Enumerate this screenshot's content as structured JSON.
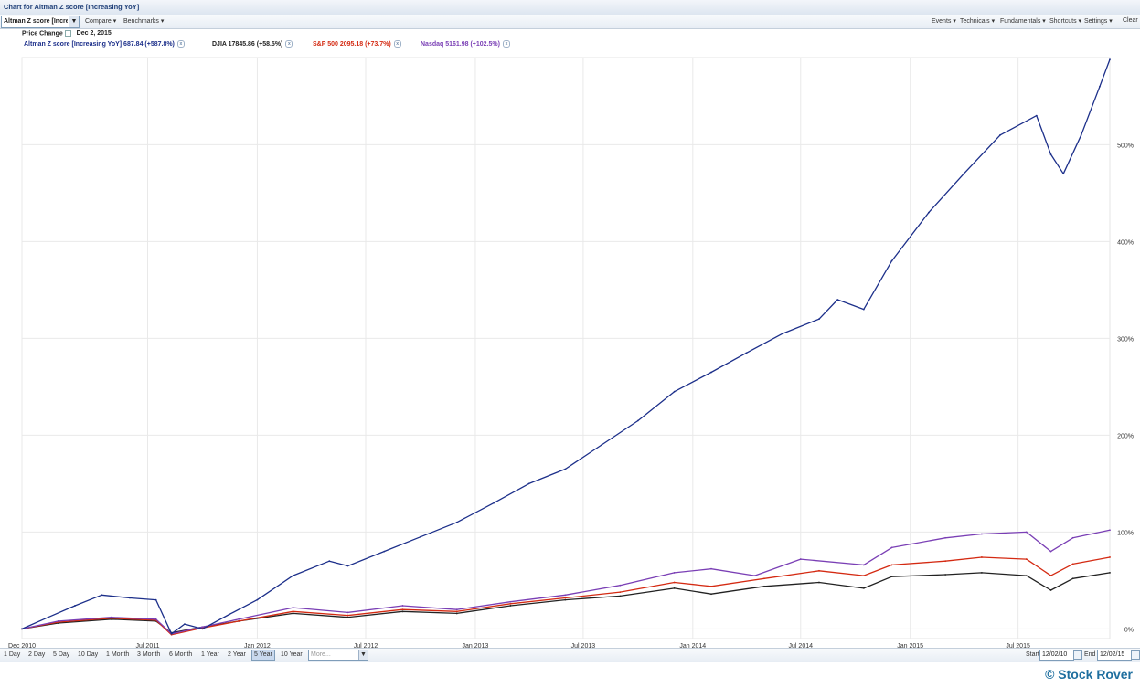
{
  "window": {
    "title": "Chart for Altman Z score [Increasing YoY]"
  },
  "toolbar": {
    "symbol_value": "Altman Z score [Increa",
    "left_items": [
      "Compare ▾",
      "Benchmarks ▾"
    ],
    "right_items": [
      "Events ▾",
      "Technicals ▾",
      "Fundamentals ▾",
      "Shortcuts ▾",
      "Settings ▾",
      "Clear"
    ]
  },
  "legend_header": {
    "label": "Price Change",
    "date": "Dec 2, 2015"
  },
  "legend": [
    {
      "text": "Altman Z score [Increasing YoY] 687.84 (+587.8%)",
      "color": "#1c2f8a"
    },
    {
      "text": "DJIA 17845.86 (+58.5%)",
      "color": "#222222"
    },
    {
      "text": "S&P 500 2095.18 (+73.7%)",
      "color": "#d42a12"
    },
    {
      "text": "Nasdaq 5161.98 (+102.5%)",
      "color": "#7a3fb5"
    }
  ],
  "chart_data": {
    "type": "line",
    "x_tick_labels": [
      "Dec 2010",
      "Jul 2011",
      "Jan 2012",
      "Jul 2012",
      "Jan 2013",
      "Jul 2013",
      "Jan 2014",
      "Jul 2014",
      "Jan 2015",
      "Jul 2015"
    ],
    "y_tick_labels": [
      "0%",
      "100%",
      "200%",
      "300%",
      "400%",
      "500%"
    ],
    "ylim": [
      -10,
      590
    ],
    "grid": true,
    "y_axis_position": "right",
    "series": [
      {
        "name": "Altman Z score [Increasing YoY]",
        "color": "#1c2f8a",
        "x": [
          "2010-12-02",
          "2011-01-15",
          "2011-03-01",
          "2011-04-15",
          "2011-06-01",
          "2011-07-15",
          "2011-08-10",
          "2011-09-01",
          "2011-10-01",
          "2011-11-15",
          "2012-01-01",
          "2012-03-01",
          "2012-05-01",
          "2012-06-01",
          "2012-08-01",
          "2012-10-01",
          "2012-12-01",
          "2013-02-01",
          "2013-04-01",
          "2013-06-01",
          "2013-08-01",
          "2013-10-01",
          "2013-12-01",
          "2014-02-01",
          "2014-04-01",
          "2014-06-01",
          "2014-08-01",
          "2014-09-01",
          "2014-10-15",
          "2014-12-01",
          "2015-02-01",
          "2015-04-01",
          "2015-06-01",
          "2015-08-01",
          "2015-08-25",
          "2015-09-15",
          "2015-10-15",
          "2015-11-15",
          "2015-12-02"
        ],
        "values": [
          0,
          12,
          24,
          35,
          32,
          30,
          -5,
          5,
          0,
          15,
          30,
          55,
          70,
          65,
          80,
          95,
          110,
          130,
          150,
          165,
          190,
          215,
          245,
          265,
          285,
          305,
          320,
          340,
          330,
          380,
          430,
          470,
          510,
          530,
          490,
          470,
          510,
          560,
          588
        ]
      },
      {
        "name": "DJIA",
        "color": "#222222",
        "x": [
          "2010-12-02",
          "2011-02-01",
          "2011-05-01",
          "2011-07-15",
          "2011-08-10",
          "2011-10-01",
          "2011-12-01",
          "2012-03-01",
          "2012-06-01",
          "2012-09-01",
          "2012-12-01",
          "2013-03-01",
          "2013-06-01",
          "2013-09-01",
          "2013-12-01",
          "2014-02-01",
          "2014-05-01",
          "2014-08-01",
          "2014-10-15",
          "2014-12-01",
          "2015-03-01",
          "2015-05-01",
          "2015-07-15",
          "2015-08-25",
          "2015-10-01",
          "2015-12-02"
        ],
        "values": [
          0,
          6,
          10,
          8,
          -4,
          2,
          8,
          16,
          12,
          18,
          16,
          24,
          30,
          34,
          42,
          36,
          44,
          48,
          42,
          54,
          56,
          58,
          55,
          40,
          52,
          58
        ]
      },
      {
        "name": "S&P 500",
        "color": "#d42a12",
        "x": [
          "2010-12-02",
          "2011-02-01",
          "2011-05-01",
          "2011-07-15",
          "2011-08-10",
          "2011-10-01",
          "2011-12-01",
          "2012-03-01",
          "2012-06-01",
          "2012-09-01",
          "2012-12-01",
          "2013-03-01",
          "2013-06-01",
          "2013-09-01",
          "2013-12-01",
          "2014-02-01",
          "2014-05-01",
          "2014-08-01",
          "2014-10-15",
          "2014-12-01",
          "2015-03-01",
          "2015-05-01",
          "2015-07-15",
          "2015-08-25",
          "2015-10-01",
          "2015-12-02"
        ],
        "values": [
          0,
          7,
          11,
          9,
          -6,
          1,
          8,
          18,
          14,
          20,
          18,
          26,
          32,
          38,
          48,
          44,
          52,
          60,
          55,
          66,
          70,
          74,
          72,
          55,
          67,
          74
        ]
      },
      {
        "name": "Nasdaq",
        "color": "#7a3fb5",
        "x": [
          "2010-12-02",
          "2011-02-01",
          "2011-05-01",
          "2011-07-15",
          "2011-08-10",
          "2011-10-01",
          "2011-12-01",
          "2012-03-01",
          "2012-06-01",
          "2012-09-01",
          "2012-12-01",
          "2013-03-01",
          "2013-06-01",
          "2013-09-01",
          "2013-12-01",
          "2014-02-01",
          "2014-04-15",
          "2014-07-01",
          "2014-10-15",
          "2014-12-01",
          "2015-03-01",
          "2015-05-01",
          "2015-07-15",
          "2015-08-25",
          "2015-10-01",
          "2015-12-02"
        ],
        "values": [
          0,
          8,
          12,
          10,
          -5,
          2,
          10,
          22,
          17,
          24,
          20,
          28,
          35,
          45,
          58,
          62,
          55,
          72,
          66,
          84,
          94,
          98,
          100,
          80,
          94,
          102
        ]
      }
    ]
  },
  "range_buttons": [
    "1 Day",
    "2 Day",
    "5 Day",
    "10 Day",
    "1 Month",
    "3 Month",
    "6 Month",
    "1 Year",
    "2 Year",
    "5 Year",
    "10 Year"
  ],
  "range_active": "5 Year",
  "more_placeholder": "More...",
  "date_range": {
    "start_label": "Start",
    "start_value": "12/02/10",
    "end_label": "End",
    "end_value": "12/02/15"
  },
  "copyright": "© Stock Rover"
}
